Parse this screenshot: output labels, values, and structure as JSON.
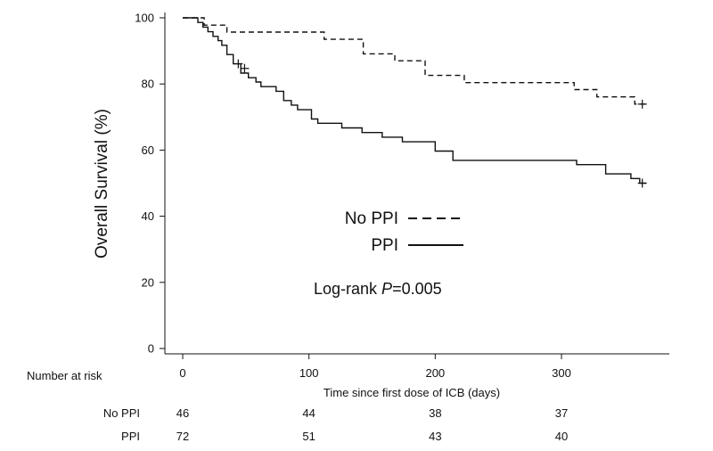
{
  "chart_data": {
    "type": "line",
    "title": "",
    "xlabel": "Time since first dose of ICB (days)",
    "ylabel": "Overall Survival (%)",
    "xlim": [
      -15,
      370
    ],
    "ylim": [
      0,
      100
    ],
    "x_ticks": [
      0,
      100,
      200,
      300
    ],
    "y_ticks": [
      0,
      20,
      40,
      60,
      80,
      100
    ],
    "grid": false,
    "legend_placement": "center",
    "series": [
      {
        "name": "No PPI",
        "line_style": "dashed",
        "x": [
          0,
          17,
          17,
          35,
          35,
          112,
          112,
          143,
          143,
          168,
          168,
          192,
          192,
          223,
          223,
          310,
          310,
          328,
          328,
          358,
          358,
          367
        ],
        "y": [
          100,
          100,
          97.8,
          97.8,
          95.7,
          95.7,
          93.5,
          93.5,
          89.1,
          89.1,
          87.0,
          87.0,
          82.6,
          82.6,
          80.4,
          80.4,
          78.3,
          78.3,
          76.1,
          76.1,
          73.9,
          73.9
        ],
        "censored": [
          {
            "x": 364,
            "y": 73.9
          }
        ]
      },
      {
        "name": "PPI",
        "line_style": "solid",
        "x": [
          0,
          12,
          12,
          16,
          16,
          20,
          20,
          24,
          24,
          28,
          28,
          31,
          31,
          35,
          35,
          40,
          40,
          46,
          46,
          52,
          52,
          58,
          58,
          62,
          62,
          74,
          74,
          80,
          80,
          86,
          86,
          91,
          91,
          102,
          102,
          107,
          107,
          126,
          126,
          142,
          142,
          158,
          158,
          174,
          174,
          200,
          200,
          214,
          214,
          312,
          312,
          335,
          335,
          355,
          355,
          362,
          362,
          367
        ],
        "y": [
          100,
          100,
          98.6,
          98.6,
          97.2,
          97.2,
          95.8,
          95.8,
          94.4,
          94.4,
          93.1,
          93.1,
          91.7,
          91.7,
          88.9,
          88.9,
          86.1,
          86.1,
          83.3,
          83.3,
          81.9,
          81.9,
          80.6,
          80.6,
          79.2,
          79.2,
          77.8,
          77.8,
          75.0,
          75.0,
          73.6,
          73.6,
          72.2,
          72.2,
          69.4,
          69.4,
          68.1,
          68.1,
          66.7,
          66.7,
          65.3,
          65.3,
          63.9,
          63.9,
          62.5,
          62.5,
          59.7,
          59.7,
          56.9,
          56.9,
          55.6,
          55.6,
          52.8,
          52.8,
          51.4,
          51.4,
          50.0,
          50.0
        ],
        "censored": [
          {
            "x": 44,
            "y": 86.1
          },
          {
            "x": 49,
            "y": 84.7
          },
          {
            "x": 364,
            "y": 50.0
          }
        ]
      }
    ],
    "annotation": {
      "prefix": "Log-rank ",
      "italic": "P",
      "suffix": "=0.005"
    },
    "risk_table": {
      "title": "Number at risk",
      "time_points": [
        0,
        100,
        200,
        300
      ],
      "rows": [
        {
          "label": "No PPI",
          "values": [
            "46",
            "44",
            "38",
            "37"
          ]
        },
        {
          "label": "PPI",
          "values": [
            "72",
            "51",
            "43",
            "40"
          ]
        }
      ]
    }
  }
}
